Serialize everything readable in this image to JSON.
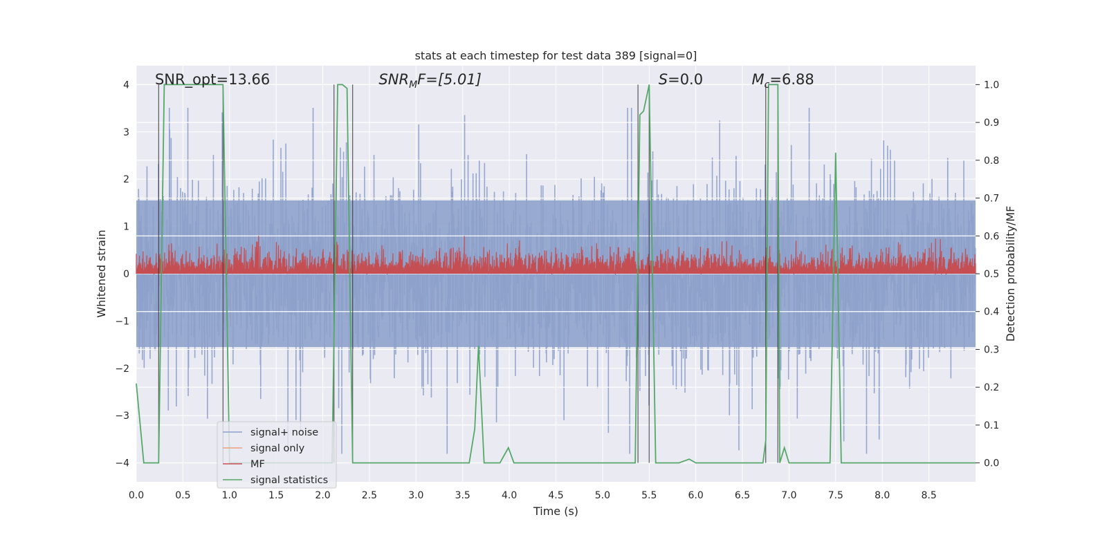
{
  "chart_data": {
    "type": "line",
    "title": "stats at each timestep for test data 389 [signal=0]",
    "xlabel": "Time (s)",
    "ylabel": "Whitened strain",
    "ylabel_right": "Detection probability/MF",
    "xlim": [
      0.0,
      9.0
    ],
    "ylim": [
      -4.4,
      4.4
    ],
    "ylim_right": [
      -0.05,
      1.05
    ],
    "xticks": [
      "0.0",
      "0.5",
      "1.0",
      "1.5",
      "2.0",
      "2.5",
      "3.0",
      "3.5",
      "4.0",
      "4.5",
      "5.0",
      "5.5",
      "6.0",
      "6.5",
      "7.0",
      "7.5",
      "8.0",
      "8.5"
    ],
    "yticks": [
      4,
      3,
      2,
      1,
      0,
      -1,
      -2,
      -3,
      -4
    ],
    "yticks_right": [
      "1.0",
      "0.9",
      "0.8",
      "0.7",
      "0.6",
      "0.5",
      "0.4",
      "0.3",
      "0.2",
      "0.1",
      "0.0"
    ],
    "annotations": [
      {
        "text": "SNR_opt=13.66",
        "x": 0.2
      },
      {
        "text": "SNR_MF=[5.01]",
        "x": 2.6,
        "main": "SNR",
        "sub": "M",
        "rest": "F=[5.01]"
      },
      {
        "text": "S=0.0",
        "x": 5.6,
        "main": "S",
        "rest": "=0.0"
      },
      {
        "text": "M_c=6.88",
        "x": 6.6,
        "main": "M",
        "sub": "c",
        "rest": "=6.88"
      }
    ],
    "event_lines_x": [
      0.24,
      0.93,
      2.12,
      2.32,
      5.38,
      5.5,
      6.75,
      6.88
    ],
    "series": [
      {
        "name": "signal+ noise",
        "color": "#8da0cb",
        "type": "noise",
        "amplitude_rms": 0.95,
        "peak": 3.5
      },
      {
        "name": "signal only",
        "color": "#e9a27c",
        "values": []
      },
      {
        "name": "MF",
        "color": "#c44e52",
        "type": "mf",
        "baseline": 0.5,
        "peak": 0.6,
        "spikes": [
          [
            3.22,
            0.56
          ],
          [
            3.98,
            0.58
          ],
          [
            5.17,
            0.57
          ],
          [
            5.68,
            0.56
          ]
        ]
      },
      {
        "name": "signal statistics",
        "color": "#55a868",
        "axis": "right",
        "x": [
          0.0,
          0.08,
          0.24,
          0.3,
          0.93,
          1.0,
          1.05,
          2.1,
          2.16,
          2.21,
          2.26,
          2.32,
          2.39,
          2.5,
          3.57,
          3.63,
          3.67,
          3.73,
          3.9,
          3.99,
          4.05,
          5.35,
          5.4,
          5.44,
          5.5,
          5.57,
          5.82,
          5.93,
          6.0,
          6.72,
          6.75,
          6.78,
          6.83,
          6.88,
          6.9,
          6.95,
          7.0,
          7.44,
          7.5,
          7.56,
          7.62,
          9.0
        ],
        "y": [
          0.21,
          0.0,
          0.0,
          1.0,
          1.0,
          0.0,
          0.0,
          0.0,
          1.0,
          1.0,
          0.99,
          0.0,
          0.0,
          0.0,
          0.0,
          0.09,
          0.31,
          0.0,
          0.0,
          0.04,
          0.0,
          0.0,
          0.92,
          0.93,
          1.0,
          0.0,
          0.0,
          0.01,
          0.0,
          0.0,
          0.06,
          1.0,
          1.0,
          1.0,
          0.0,
          0.04,
          0.0,
          0.0,
          0.82,
          0.0,
          0.0,
          0.0
        ]
      }
    ],
    "legend": {
      "position": "lower-left",
      "entries": [
        "signal+ noise",
        "signal only",
        "MF",
        "signal statistics"
      ]
    }
  }
}
